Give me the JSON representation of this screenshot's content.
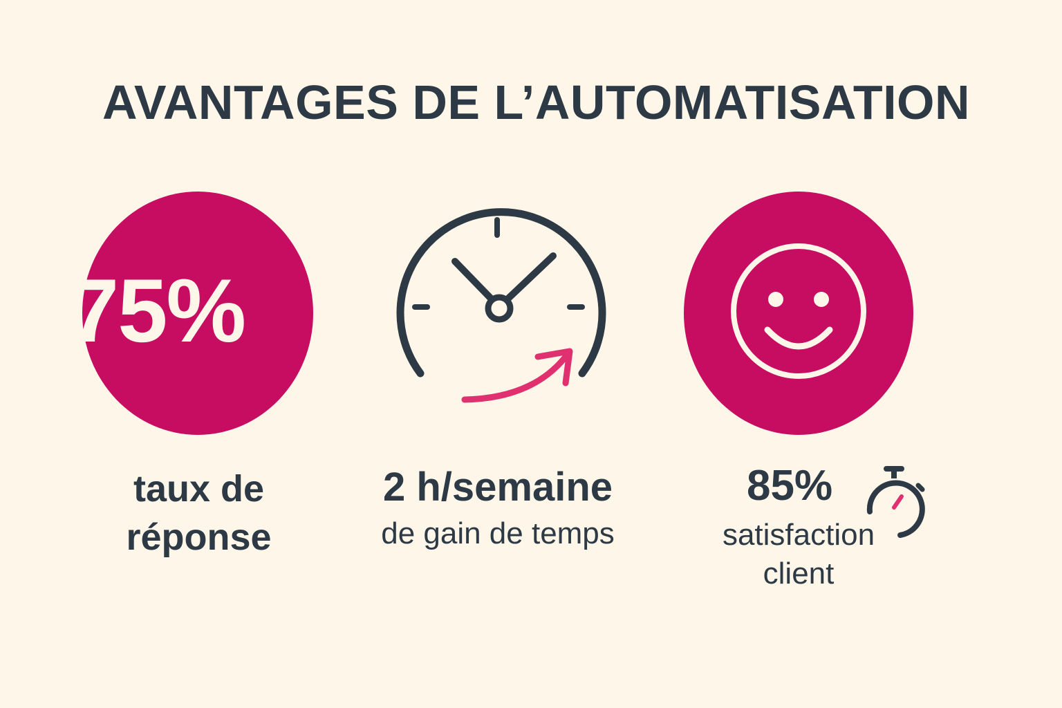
{
  "title": "AVANTAGES DE L’AUTOMATISATION",
  "colors": {
    "background": "#fdf6e9",
    "accent": "#c70d62",
    "text": "#2d3a45"
  },
  "stats": [
    {
      "value": "75%",
      "label_line1": "taux de",
      "label_line2": "réponse",
      "icon": "percentage-circle"
    },
    {
      "value": "2 h/semaine",
      "label": "de gain de temps",
      "icon": "clock-icon"
    },
    {
      "value": "85%",
      "label_line1": "satisfaction",
      "label_line2": "client",
      "icon": "smiley-icon",
      "secondary_icon": "stopwatch-icon"
    }
  ]
}
